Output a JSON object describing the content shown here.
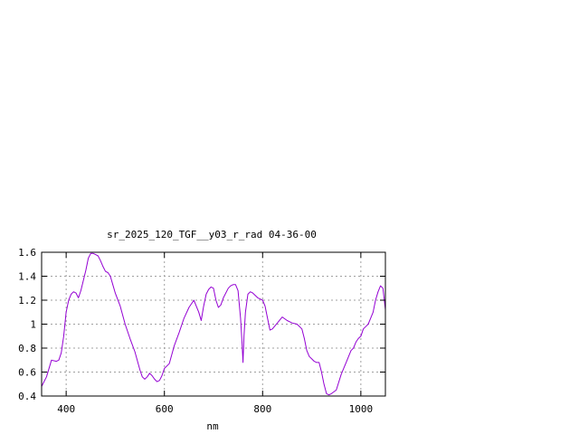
{
  "chart_data": {
    "type": "line",
    "title": "sr_2025_120_TGF__y03_r_rad 04-36-00",
    "xlabel": "nm",
    "ylabel": "",
    "xlim": [
      350,
      1050
    ],
    "ylim": [
      0.4,
      1.6
    ],
    "xticks": [
      400,
      600,
      800,
      1000
    ],
    "xtick_labels": [
      "400",
      "600",
      "800",
      "1000"
    ],
    "yticks": [
      0.4,
      0.6,
      0.8,
      1.0,
      1.2,
      1.4,
      1.6
    ],
    "ytick_labels": [
      "0.4",
      "0.6",
      "0.8",
      "1",
      "1.2",
      "1.4",
      "1.6"
    ],
    "grid": true,
    "legend": "none",
    "series": [
      {
        "color": "#9400d3",
        "x": [
          350,
          360,
          370,
          380,
          385,
          390,
          395,
          400,
          405,
          410,
          415,
          420,
          425,
          430,
          440,
          445,
          450,
          455,
          460,
          465,
          470,
          475,
          480,
          485,
          490,
          495,
          500,
          510,
          520,
          530,
          540,
          550,
          555,
          560,
          565,
          570,
          575,
          580,
          585,
          590,
          595,
          600,
          610,
          620,
          630,
          640,
          650,
          660,
          670,
          675,
          680,
          685,
          690,
          695,
          700,
          705,
          710,
          715,
          720,
          730,
          735,
          740,
          745,
          750,
          755,
          758,
          760,
          762,
          765,
          770,
          775,
          780,
          790,
          800,
          805,
          810,
          815,
          820,
          830,
          840,
          850,
          860,
          870,
          880,
          885,
          890,
          895,
          900,
          905,
          910,
          915,
          920,
          925,
          930,
          935,
          940,
          950,
          960,
          970,
          980,
          985,
          990,
          995,
          1000,
          1005,
          1010,
          1015,
          1020,
          1025,
          1030,
          1035,
          1040,
          1045,
          1050
        ],
        "y": [
          0.48,
          0.56,
          0.7,
          0.69,
          0.7,
          0.76,
          0.9,
          1.1,
          1.2,
          1.25,
          1.27,
          1.26,
          1.22,
          1.28,
          1.45,
          1.55,
          1.59,
          1.59,
          1.58,
          1.57,
          1.53,
          1.48,
          1.44,
          1.43,
          1.4,
          1.33,
          1.26,
          1.15,
          1.0,
          0.88,
          0.77,
          0.62,
          0.56,
          0.54,
          0.56,
          0.59,
          0.57,
          0.54,
          0.52,
          0.53,
          0.57,
          0.63,
          0.67,
          0.82,
          0.93,
          1.05,
          1.14,
          1.2,
          1.1,
          1.03,
          1.15,
          1.25,
          1.29,
          1.31,
          1.3,
          1.2,
          1.14,
          1.16,
          1.22,
          1.3,
          1.32,
          1.33,
          1.33,
          1.28,
          1.05,
          0.85,
          0.68,
          0.9,
          1.1,
          1.25,
          1.27,
          1.26,
          1.22,
          1.2,
          1.15,
          1.05,
          0.95,
          0.96,
          1.01,
          1.06,
          1.03,
          1.01,
          1.0,
          0.96,
          0.88,
          0.78,
          0.73,
          0.71,
          0.69,
          0.68,
          0.68,
          0.6,
          0.5,
          0.42,
          0.41,
          0.42,
          0.45,
          0.58,
          0.68,
          0.78,
          0.8,
          0.85,
          0.88,
          0.9,
          0.96,
          0.98,
          1.0,
          1.05,
          1.1,
          1.2,
          1.27,
          1.32,
          1.3,
          1.12
        ]
      }
    ]
  }
}
